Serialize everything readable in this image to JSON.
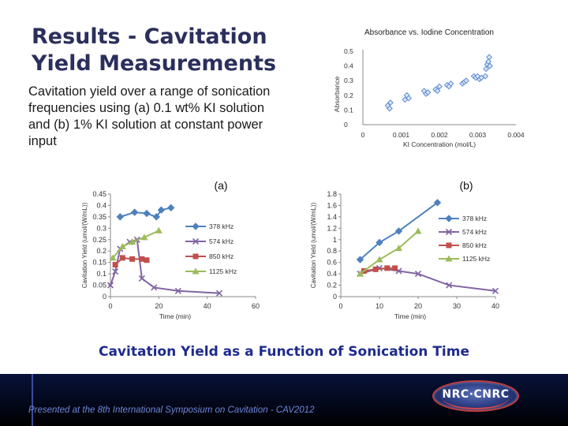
{
  "slide": {
    "title_line1": "Results - Cavitation",
    "title_line2": "Yield Measurements",
    "subtitle": "Cavitation yield over a range of sonication frequencies using (a) 0.1 wt% KI solution and (b) 1% KI solution at constant power input",
    "caption": "Cavitation Yield as a Function of Sonication Time",
    "footer": "Presented at the 8th International Symposium on Cavitation - CAV2012",
    "logo_text": "NRC·CNRC",
    "colors": {
      "title": "#2b2f5c",
      "caption": "#1e2a8c",
      "footer_text": "#6f86d8",
      "footer_band": "#020718"
    }
  },
  "chart_data": [
    {
      "id": "absorbance",
      "type": "scatter",
      "title": "Absorbance vs. Iodine Concentration",
      "xlabel": "KI Concentration (mol/L)",
      "ylabel": "Absorbance",
      "xlim": [
        0,
        0.004
      ],
      "ylim": [
        0,
        0.5
      ],
      "x_ticks": [
        "0",
        "0.001",
        "0.002",
        "0.003",
        "0.004"
      ],
      "y_ticks": [
        "0",
        "0.1",
        "0.2",
        "0.3",
        "0.4",
        "0.5"
      ],
      "color": "#5b8bd0",
      "marker": "diamond",
      "points": [
        [
          0.00065,
          0.13
        ],
        [
          0.0007,
          0.11
        ],
        [
          0.00072,
          0.15
        ],
        [
          0.0011,
          0.17
        ],
        [
          0.00115,
          0.2
        ],
        [
          0.0012,
          0.18
        ],
        [
          0.0016,
          0.23
        ],
        [
          0.00165,
          0.21
        ],
        [
          0.0017,
          0.22
        ],
        [
          0.0019,
          0.24
        ],
        [
          0.00195,
          0.23
        ],
        [
          0.002,
          0.26
        ],
        [
          0.0022,
          0.27
        ],
        [
          0.00225,
          0.26
        ],
        [
          0.0023,
          0.28
        ],
        [
          0.0026,
          0.28
        ],
        [
          0.00265,
          0.29
        ],
        [
          0.0027,
          0.3
        ],
        [
          0.0029,
          0.33
        ],
        [
          0.00295,
          0.32
        ],
        [
          0.003,
          0.33
        ],
        [
          0.00305,
          0.31
        ],
        [
          0.0031,
          0.32
        ],
        [
          0.0032,
          0.33
        ],
        [
          0.00322,
          0.38
        ],
        [
          0.00325,
          0.41
        ],
        [
          0.00328,
          0.43
        ],
        [
          0.0033,
          0.46
        ],
        [
          0.00332,
          0.4
        ]
      ]
    },
    {
      "id": "a",
      "type": "line",
      "title": "(a)",
      "xlabel": "Time (min)",
      "ylabel": "Cavitation Yield (umol/(W/mL))",
      "xlim": [
        0,
        60
      ],
      "ylim": [
        0,
        0.45
      ],
      "x_ticks": [
        "0",
        "20",
        "40",
        "60"
      ],
      "y_ticks": [
        "0",
        "0.05",
        "0.1",
        "0.15",
        "0.2",
        "0.25",
        "0.3",
        "0.35",
        "0.4",
        "0.45"
      ],
      "legend": "right",
      "series": [
        {
          "name": "378 kHz",
          "color": "#4f81bd",
          "marker": "diamond",
          "x": [
            4,
            10,
            15,
            19,
            21,
            25
          ],
          "y": [
            0.35,
            0.37,
            0.365,
            0.35,
            0.38,
            0.39
          ]
        },
        {
          "name": "574 kHz",
          "color": "#8064a2",
          "marker": "x",
          "x": [
            0,
            2,
            4,
            8,
            11,
            13,
            18,
            28,
            45
          ],
          "y": [
            0.05,
            0.11,
            0.21,
            0.24,
            0.25,
            0.08,
            0.04,
            0.025,
            0.015
          ]
        },
        {
          "name": "850 kHz",
          "color": "#c0504d",
          "marker": "square",
          "x": [
            2,
            5,
            9,
            13,
            15
          ],
          "y": [
            0.14,
            0.17,
            0.165,
            0.165,
            0.16
          ]
        },
        {
          "name": "1125 kHz",
          "color": "#9bbb59",
          "marker": "triangle",
          "x": [
            1,
            5,
            9,
            14,
            20
          ],
          "y": [
            0.17,
            0.22,
            0.24,
            0.26,
            0.29
          ]
        }
      ]
    },
    {
      "id": "b",
      "type": "line",
      "title": "(b)",
      "xlabel": "Time (min)",
      "ylabel": "Cavitation Yield (umol/(W/mL))",
      "xlim": [
        0,
        40
      ],
      "ylim": [
        0,
        1.8
      ],
      "x_ticks": [
        "0",
        "10",
        "20",
        "30",
        "40"
      ],
      "y_ticks": [
        "0",
        "0.2",
        "0.4",
        "0.6",
        "0.8",
        "1",
        "1.2",
        "1.4",
        "1.6",
        "1.8"
      ],
      "legend": "right",
      "series": [
        {
          "name": "378 kHz",
          "color": "#4f81bd",
          "marker": "diamond",
          "x": [
            5,
            10,
            15,
            25
          ],
          "y": [
            0.65,
            0.95,
            1.15,
            1.65
          ]
        },
        {
          "name": "574 kHz",
          "color": "#8064a2",
          "marker": "x",
          "x": [
            5,
            10,
            15,
            20,
            28,
            40
          ],
          "y": [
            0.4,
            0.5,
            0.45,
            0.4,
            0.2,
            0.1
          ]
        },
        {
          "name": "850 kHz",
          "color": "#c0504d",
          "marker": "square",
          "x": [
            6,
            9,
            12,
            14
          ],
          "y": [
            0.45,
            0.48,
            0.5,
            0.5
          ]
        },
        {
          "name": "1125 kHz",
          "color": "#9bbb59",
          "marker": "triangle",
          "x": [
            5,
            10,
            15,
            20
          ],
          "y": [
            0.4,
            0.65,
            0.85,
            1.15
          ]
        }
      ]
    }
  ]
}
